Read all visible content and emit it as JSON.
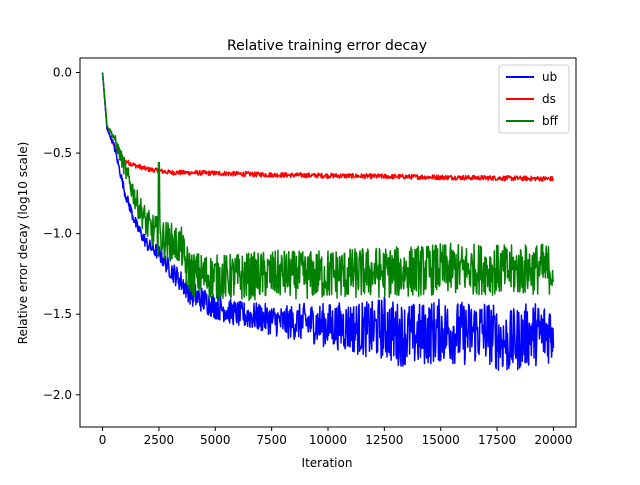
{
  "chart_data": {
    "type": "line",
    "title": "Relative training error decay",
    "xlabel": "Iteration",
    "ylabel": "Relative error decay (log10 scale)",
    "xlim": [
      -1000,
      21000
    ],
    "ylim": [
      -2.2,
      0.09
    ],
    "x_ticks": [
      0,
      2500,
      5000,
      7500,
      10000,
      12500,
      15000,
      17500,
      20000
    ],
    "x_tick_labels": [
      "0",
      "2500",
      "5000",
      "7500",
      "10000",
      "12500",
      "15000",
      "17500",
      "20000"
    ],
    "y_ticks": [
      0.0,
      -0.5,
      -1.0,
      -1.5,
      -2.0
    ],
    "y_tick_labels": [
      "0.0",
      "−0.5",
      "−1.0",
      "−1.5",
      "−2.0"
    ],
    "grid": false,
    "legend_position": "top-right",
    "series": [
      {
        "name": "ub",
        "color": "#0000ff",
        "x": [
          0,
          200,
          500,
          1000,
          1500,
          2000,
          2500,
          3000,
          3500,
          4000,
          5000,
          6000,
          7000,
          8000,
          9000,
          10000,
          11000,
          12000,
          12500,
          13000,
          14000,
          15000,
          16000,
          17000,
          17500,
          18000,
          18500,
          19000,
          19500,
          20000
        ],
        "y": [
          0.0,
          -0.35,
          -0.45,
          -0.75,
          -0.95,
          -1.07,
          -1.12,
          -1.22,
          -1.3,
          -1.38,
          -1.45,
          -1.5,
          -1.52,
          -1.55,
          -1.55,
          -1.57,
          -1.58,
          -1.6,
          -1.58,
          -1.62,
          -1.63,
          -1.6,
          -1.62,
          -1.6,
          -1.65,
          -1.68,
          -1.65,
          -1.62,
          -1.62,
          -1.6
        ],
        "noise": [
          0.0,
          0.0,
          0.02,
          0.03,
          0.04,
          0.04,
          0.05,
          0.06,
          0.07,
          0.08,
          0.08,
          0.08,
          0.09,
          0.1,
          0.12,
          0.14,
          0.16,
          0.18,
          0.2,
          0.2,
          0.2,
          0.2,
          0.2,
          0.2,
          0.2,
          0.2,
          0.2,
          0.2,
          0.2,
          0.2
        ],
        "min": [
          0.0,
          -0.36,
          -0.48,
          -0.8,
          -1.0,
          -1.12,
          -1.2,
          -1.28,
          -1.38,
          -1.5,
          -1.56,
          -1.62,
          -1.66,
          -1.68,
          -1.72,
          -1.8,
          -1.88,
          -1.95,
          -1.98,
          -1.96,
          -1.95,
          -1.92,
          -1.92,
          -1.95,
          -2.03,
          -2.11,
          -1.95,
          -1.95,
          -1.9,
          -1.85
        ]
      },
      {
        "name": "ds",
        "color": "#ff0000",
        "x": [
          0,
          200,
          500,
          800,
          1000,
          1500,
          2000,
          2500,
          3000,
          5000,
          7500,
          10000,
          12500,
          15000,
          17500,
          20000
        ],
        "y": [
          0.0,
          -0.35,
          -0.45,
          -0.52,
          -0.55,
          -0.58,
          -0.6,
          -0.61,
          -0.62,
          -0.625,
          -0.635,
          -0.64,
          -0.645,
          -0.65,
          -0.655,
          -0.66
        ],
        "noise": [
          0.0,
          0.0,
          0.01,
          0.015,
          0.015,
          0.015,
          0.015,
          0.015,
          0.015,
          0.015,
          0.015,
          0.015,
          0.015,
          0.015,
          0.015,
          0.015
        ]
      },
      {
        "name": "bff",
        "color": "#008000",
        "x": [
          0,
          200,
          500,
          1000,
          1500,
          2000,
          2500,
          3000,
          3500,
          3700,
          4000,
          5000,
          6000,
          7000,
          8000,
          9000,
          10000,
          11000,
          12000,
          13000,
          14000,
          15000,
          16000,
          17000,
          18000,
          19000,
          20000
        ],
        "y": [
          0.0,
          -0.33,
          -0.4,
          -0.6,
          -0.8,
          -0.95,
          -1.02,
          -1.05,
          -1.08,
          -1.2,
          -1.25,
          -1.27,
          -1.27,
          -1.26,
          -1.25,
          -1.26,
          -1.25,
          -1.25,
          -1.24,
          -1.24,
          -1.23,
          -1.22,
          -1.22,
          -1.22,
          -1.23,
          -1.22,
          -1.22
        ],
        "noise": [
          0.0,
          0.0,
          0.03,
          0.06,
          0.08,
          0.1,
          0.12,
          0.12,
          0.12,
          0.14,
          0.14,
          0.14,
          0.15,
          0.15,
          0.15,
          0.15,
          0.16,
          0.16,
          0.16,
          0.16,
          0.16,
          0.16,
          0.16,
          0.16,
          0.16,
          0.16,
          0.16
        ],
        "spike": [
          2500,
          -0.56
        ]
      }
    ]
  }
}
